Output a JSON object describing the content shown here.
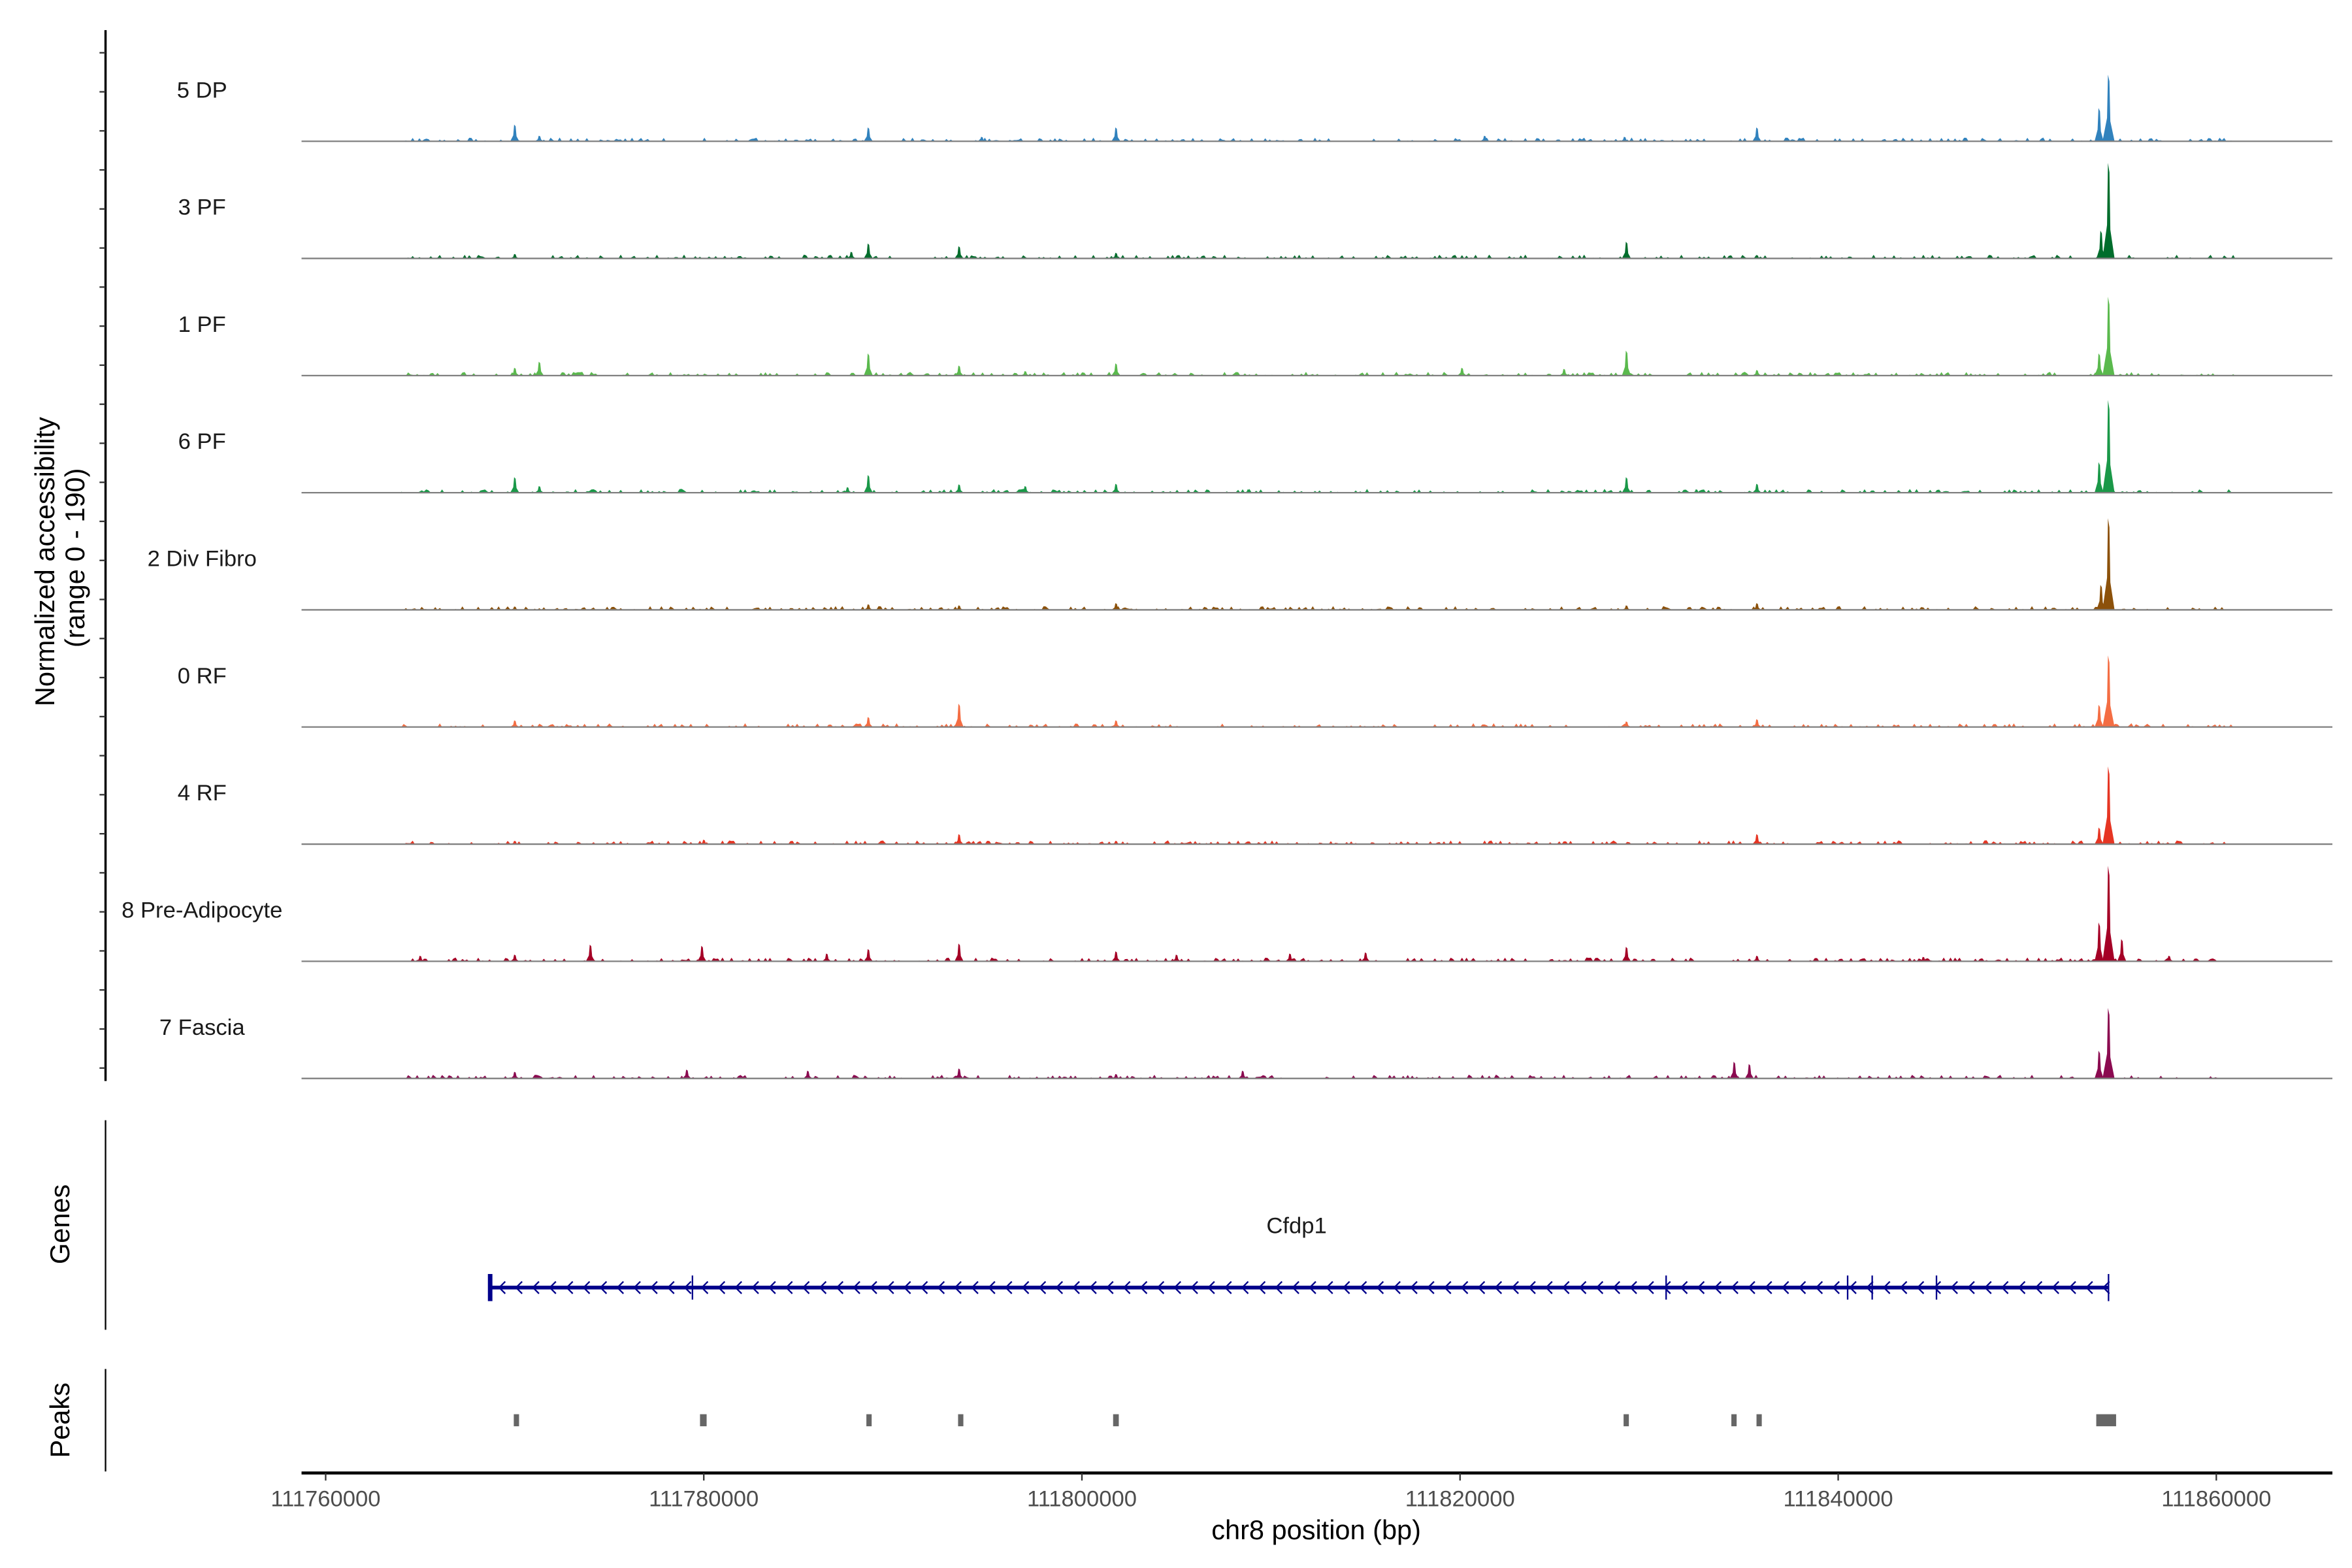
{
  "chart_data": {
    "type": "area",
    "title": "",
    "xlabel": "chr8 position (bp)",
    "ylabel": "Normalized accessibility\n(range 0 - 190)",
    "ylabel_lines": [
      "Normalized accessibility",
      "(range 0 - 190)"
    ],
    "ylim": [
      0,
      190
    ],
    "xlim": [
      111758700,
      111866500
    ],
    "xticks": [
      111760000,
      111780000,
      111800000,
      111820000,
      111840000,
      111860000
    ],
    "xtick_labels": [
      "111760000",
      "111780000",
      "111800000",
      "111820000",
      "111840000",
      "111860000"
    ],
    "tracks": [
      {
        "name": "5 DP",
        "color": "#3182bd",
        "peaks": [
          [
            111770000,
            30
          ],
          [
            111771300,
            10
          ],
          [
            111788700,
            25
          ],
          [
            111794700,
            8
          ],
          [
            111801800,
            25
          ],
          [
            111821300,
            10
          ],
          [
            111828700,
            8
          ],
          [
            111835700,
            25
          ],
          [
            111854300,
            120
          ],
          [
            111853800,
            60
          ]
        ]
      },
      {
        "name": "3 PF",
        "color": "#006d2c",
        "peaks": [
          [
            111770000,
            8
          ],
          [
            111787800,
            12
          ],
          [
            111788700,
            27
          ],
          [
            111793500,
            22
          ],
          [
            111801800,
            10
          ],
          [
            111828800,
            30
          ],
          [
            111835700,
            6
          ],
          [
            111854300,
            172
          ],
          [
            111853900,
            50
          ]
        ]
      },
      {
        "name": "1 PF",
        "color": "#5ab94d",
        "peaks": [
          [
            111770000,
            14
          ],
          [
            111771300,
            25
          ],
          [
            111788700,
            40
          ],
          [
            111793500,
            18
          ],
          [
            111797000,
            8
          ],
          [
            111801800,
            22
          ],
          [
            111820100,
            14
          ],
          [
            111825500,
            12
          ],
          [
            111828800,
            45
          ],
          [
            111835700,
            10
          ],
          [
            111854300,
            142
          ],
          [
            111853800,
            40
          ]
        ]
      },
      {
        "name": "6 PF",
        "color": "#1a9848",
        "peaks": [
          [
            111770000,
            28
          ],
          [
            111771300,
            12
          ],
          [
            111788700,
            32
          ],
          [
            111787600,
            10
          ],
          [
            111793500,
            15
          ],
          [
            111797000,
            12
          ],
          [
            111801800,
            16
          ],
          [
            111808800,
            6
          ],
          [
            111828800,
            28
          ],
          [
            111832500,
            6
          ],
          [
            111835700,
            16
          ],
          [
            111854300,
            167
          ],
          [
            111853800,
            55
          ]
        ]
      },
      {
        "name": "2 Div Fibro",
        "color": "#8c510a",
        "peaks": [
          [
            111770000,
            6
          ],
          [
            111788700,
            10
          ],
          [
            111793500,
            8
          ],
          [
            111801800,
            12
          ],
          [
            111828800,
            8
          ],
          [
            111835700,
            12
          ],
          [
            111854300,
            165
          ],
          [
            111853900,
            45
          ]
        ]
      },
      {
        "name": "0 RF",
        "color": "#f46d43",
        "peaks": [
          [
            111770000,
            12
          ],
          [
            111788700,
            18
          ],
          [
            111793500,
            42
          ],
          [
            111801800,
            12
          ],
          [
            111828800,
            10
          ],
          [
            111835700,
            14
          ],
          [
            111854300,
            129
          ],
          [
            111853800,
            40
          ]
        ]
      },
      {
        "name": "4 RF",
        "color": "#e63523",
        "peaks": [
          [
            111770000,
            6
          ],
          [
            111780000,
            8
          ],
          [
            111793500,
            18
          ],
          [
            111801800,
            6
          ],
          [
            111835700,
            18
          ],
          [
            111854300,
            140
          ],
          [
            111853800,
            30
          ]
        ]
      },
      {
        "name": "8 Pre-Adipocyte",
        "color": "#a50026",
        "peaks": [
          [
            111765000,
            10
          ],
          [
            111770000,
            12
          ],
          [
            111774000,
            30
          ],
          [
            111779900,
            28
          ],
          [
            111786500,
            14
          ],
          [
            111788700,
            22
          ],
          [
            111793500,
            32
          ],
          [
            111801800,
            18
          ],
          [
            111805000,
            12
          ],
          [
            111811000,
            14
          ],
          [
            111815000,
            16
          ],
          [
            111828800,
            26
          ],
          [
            111835700,
            10
          ],
          [
            111844500,
            8
          ],
          [
            111854300,
            172
          ],
          [
            111853800,
            70
          ],
          [
            111855000,
            40
          ],
          [
            111857500,
            10
          ]
        ]
      },
      {
        "name": "7 Fascia",
        "color": "#8b0a50",
        "peaks": [
          [
            111770000,
            12
          ],
          [
            111779100,
            16
          ],
          [
            111785500,
            14
          ],
          [
            111793500,
            18
          ],
          [
            111801800,
            8
          ],
          [
            111808500,
            14
          ],
          [
            111834500,
            30
          ],
          [
            111835300,
            26
          ],
          [
            111854300,
            127
          ],
          [
            111853800,
            50
          ]
        ]
      }
    ],
    "genes": {
      "label": "Genes",
      "name": "Cfdp1",
      "strand": "-",
      "start": 111768700,
      "end": 111854300,
      "color": "#00008b",
      "exons": [
        111768700,
        111779400,
        111830900,
        111840500,
        111841800,
        111845200,
        111854300
      ]
    },
    "peaks_track": {
      "label": "Peaks",
      "color": "#666666",
      "regions": [
        [
          111769950,
          111770200
        ],
        [
          111779800,
          111780150
        ],
        [
          111788600,
          111788850
        ],
        [
          111793450,
          111793700
        ],
        [
          111801650,
          111801950
        ],
        [
          111828650,
          111828850
        ],
        [
          111834350,
          111834600
        ],
        [
          111835680,
          111835820
        ],
        [
          111853650,
          111854700
        ]
      ]
    }
  }
}
